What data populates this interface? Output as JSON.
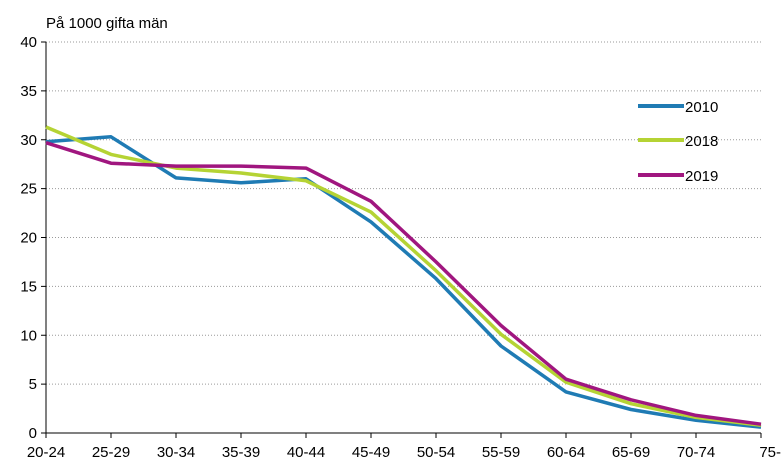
{
  "chart_data": {
    "type": "line",
    "title": "",
    "unit_label": "På 1000 gifta män",
    "xlabel": "",
    "ylabel": "",
    "ylim": [
      0,
      40
    ],
    "yticks": [
      0,
      5,
      10,
      15,
      20,
      25,
      30,
      35,
      40
    ],
    "grid": "horizontal dotted",
    "legend_position": "right",
    "categories": [
      "20-24",
      "25-29",
      "30-34",
      "35-39",
      "40-44",
      "45-49",
      "50-54",
      "55-59",
      "60-64",
      "65-69",
      "70-74",
      "75-"
    ],
    "series": [
      {
        "name": "2010",
        "color": "#1f7bb4",
        "values": [
          29.8,
          30.3,
          26.1,
          25.6,
          26.0,
          21.6,
          15.8,
          8.9,
          4.2,
          2.4,
          1.3,
          0.6
        ]
      },
      {
        "name": "2018",
        "color": "#b5d334",
        "values": [
          31.3,
          28.5,
          27.1,
          26.6,
          25.8,
          22.6,
          16.6,
          10.1,
          5.2,
          3.0,
          1.6,
          0.8
        ]
      },
      {
        "name": "2019",
        "color": "#a0167f",
        "values": [
          29.7,
          27.6,
          27.3,
          27.3,
          27.1,
          23.7,
          17.5,
          11.0,
          5.5,
          3.4,
          1.8,
          0.9
        ]
      }
    ]
  }
}
